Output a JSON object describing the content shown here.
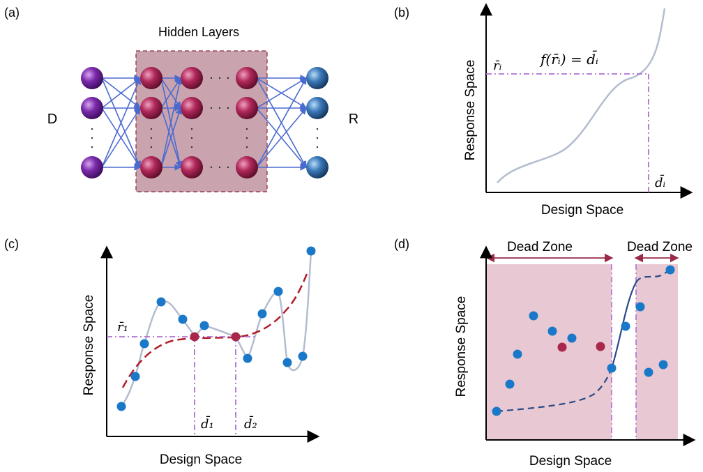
{
  "panels": {
    "a": {
      "label": "(a)",
      "hidden_layers": "Hidden Layers",
      "input_label": "D",
      "output_label": "R"
    },
    "b": {
      "label": "(b)",
      "ylabel": "Response Space",
      "xlabel": "Design Space",
      "equation": "f(r̄ᵢ) = d̄ᵢ",
      "r_label": "r̄ᵢ",
      "d_label": "d̄ᵢ"
    },
    "c": {
      "label": "(c)",
      "ylabel": "Response Space",
      "xlabel": "Design Space",
      "r_label": "r̄₁",
      "d1_label": "d̄₁",
      "d2_label": "d̄₂"
    },
    "d": {
      "label": "(d)",
      "ylabel": "Response Space",
      "xlabel": "Design Space",
      "zone1": "Dead Zone",
      "zone2": "Dead Zone"
    }
  },
  "colors": {
    "input_node": "#6a2a9a",
    "hidden_node": "#b0285a",
    "output_node": "#3a78b8",
    "connection": "#4a6ad0",
    "hidden_box": "#c9a4ae",
    "hidden_box_border": "#8a2a40",
    "curve_gray": "#b4bcd0",
    "guide_purple": "#b070d0",
    "fit_red": "#b01c28",
    "point_blue": "#1a78c8",
    "point_red": "#a8284c",
    "dead_zone_fill": "#e8c8d2",
    "dead_zone_arrow": "#9a2a48",
    "dashed_blue": "#2a4a88"
  }
}
